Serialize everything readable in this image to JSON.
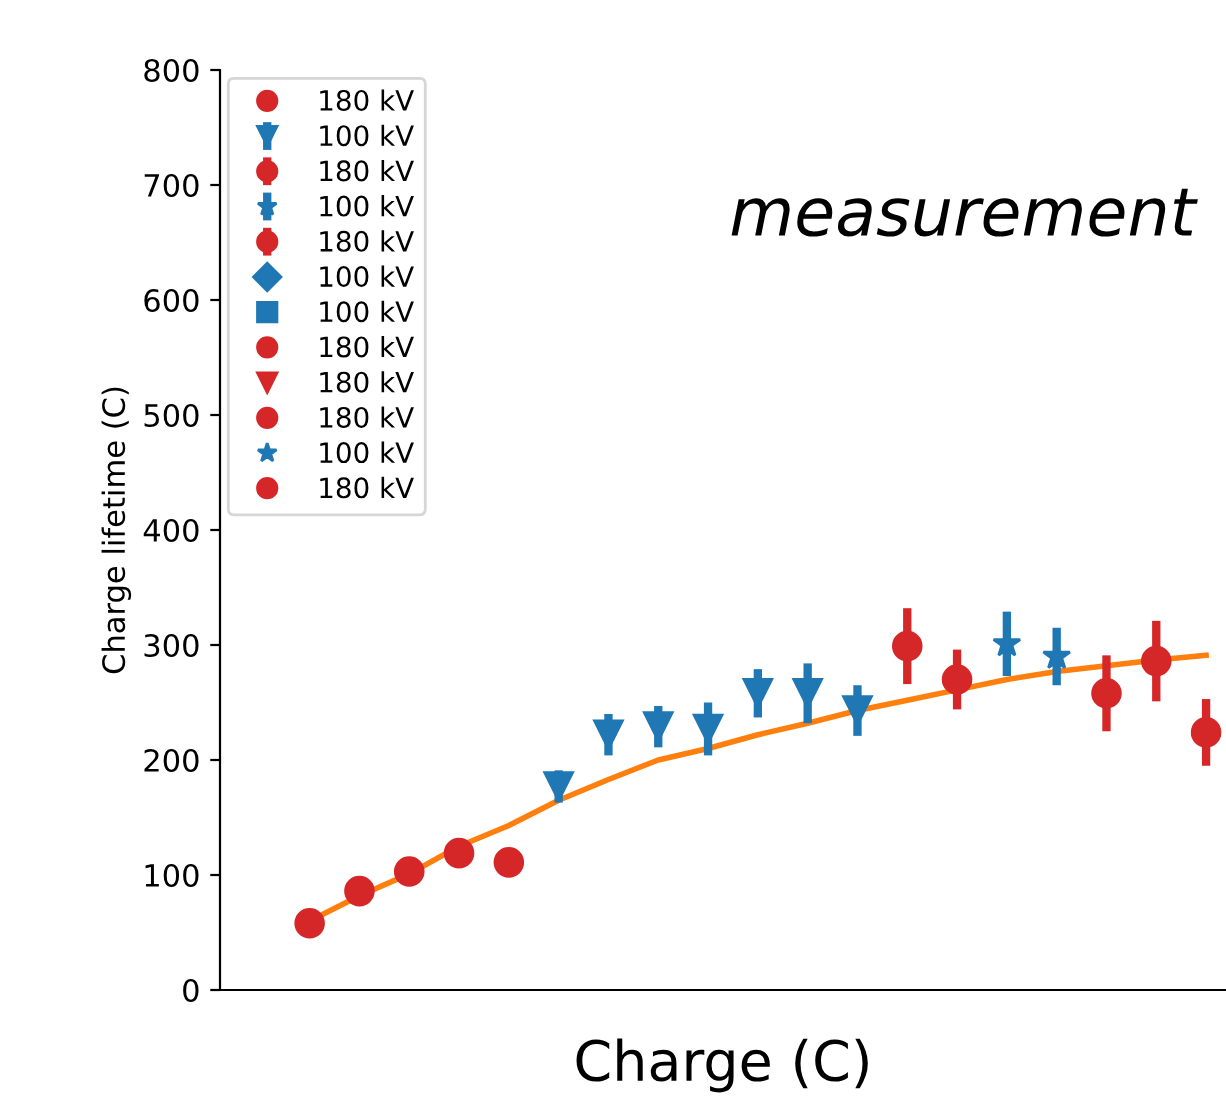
{
  "chart_data": {
    "type": "scatter",
    "xlabel": "Charge (C)",
    "ylabel": "Charge lifetime (C)",
    "ylim": [
      0,
      800
    ],
    "yticks": [
      0,
      100,
      200,
      300,
      400,
      500,
      600,
      700,
      800
    ],
    "grid": false,
    "legend": "top left",
    "annotations": [
      "measurement"
    ],
    "categories": [
      null,
      null,
      null,
      null,
      null,
      null,
      null,
      null,
      null,
      null,
      null,
      null,
      null,
      null,
      null,
      null,
      null,
      null,
      null
    ],
    "series": [
      {
        "name": "180 kV",
        "color": "#d62728",
        "marker": "circle",
        "values": [
          58,
          86,
          103,
          119,
          111,
          null,
          null,
          null,
          null,
          null,
          null,
          null,
          null,
          null,
          null,
          null,
          null,
          null,
          null
        ]
      },
      {
        "name": "100 kV",
        "color": "#1f77b4",
        "marker": "triangle_down",
        "values": [
          null,
          null,
          null,
          null,
          null,
          177,
          222,
          229,
          227,
          258,
          258,
          243,
          null,
          null,
          null,
          null,
          null,
          null,
          null
        ],
        "errors": [
          null,
          null,
          null,
          null,
          null,
          14,
          18,
          18,
          23,
          21,
          26,
          22,
          null,
          null,
          null,
          null,
          null,
          null,
          null
        ]
      },
      {
        "name": "180 kV",
        "color": "#d62728",
        "marker": "circle",
        "values": [
          null,
          null,
          null,
          null,
          null,
          null,
          null,
          null,
          null,
          null,
          null,
          null,
          299,
          null,
          null,
          null,
          null,
          null,
          null
        ],
        "errors": [
          null,
          null,
          null,
          null,
          null,
          null,
          null,
          null,
          null,
          null,
          null,
          null,
          33,
          null,
          null,
          null,
          null,
          null,
          null
        ]
      },
      {
        "name": "100 kV",
        "color": "#1f77b4",
        "marker": "star",
        "values": [
          null,
          null,
          null,
          null,
          null,
          null,
          null,
          null,
          null,
          null,
          null,
          null,
          null,
          null,
          301,
          290,
          null,
          null,
          null
        ],
        "errors": [
          null,
          null,
          null,
          null,
          null,
          null,
          null,
          null,
          null,
          null,
          null,
          null,
          null,
          null,
          28,
          25,
          null,
          null,
          null
        ]
      },
      {
        "name": "180 kV",
        "color": "#d62728",
        "marker": "circle",
        "values": [
          null,
          null,
          null,
          null,
          null,
          null,
          null,
          null,
          null,
          null,
          null,
          null,
          null,
          270,
          null,
          null,
          258,
          286,
          224
        ],
        "errors": [
          null,
          null,
          null,
          null,
          null,
          null,
          null,
          null,
          null,
          null,
          null,
          null,
          null,
          26,
          null,
          null,
          33,
          35,
          29
        ]
      },
      {
        "name": "100 kV",
        "color": "#1f77b4",
        "marker": "diamond",
        "values": [
          null,
          null,
          null,
          null,
          null,
          null,
          null,
          null,
          null,
          null,
          null,
          null,
          null,
          null,
          null,
          null,
          null,
          null,
          null
        ]
      },
      {
        "name": "100 kV",
        "color": "#1f77b4",
        "marker": "square",
        "values": [
          null,
          null,
          null,
          null,
          null,
          null,
          null,
          null,
          null,
          null,
          null,
          null,
          null,
          null,
          null,
          null,
          null,
          null,
          null
        ]
      },
      {
        "name": "180 kV",
        "color": "#d62728",
        "marker": "circle",
        "values": [
          null,
          null,
          null,
          null,
          null,
          null,
          null,
          null,
          null,
          null,
          null,
          null,
          null,
          null,
          null,
          null,
          null,
          null,
          null
        ]
      },
      {
        "name": "180 kV",
        "color": "#d62728",
        "marker": "triangle_down",
        "values": [
          null,
          null,
          null,
          null,
          null,
          null,
          null,
          null,
          null,
          null,
          null,
          null,
          null,
          null,
          null,
          null,
          null,
          null,
          null
        ]
      },
      {
        "name": "180 kV",
        "color": "#d62728",
        "marker": "circle",
        "values": [
          null,
          null,
          null,
          null,
          null,
          null,
          null,
          null,
          null,
          null,
          null,
          null,
          null,
          null,
          null,
          null,
          null,
          null,
          null
        ]
      },
      {
        "name": "100 kV",
        "color": "#1f77b4",
        "marker": "star",
        "values": [
          null,
          null,
          null,
          null,
          null,
          null,
          null,
          null,
          null,
          null,
          null,
          null,
          null,
          null,
          null,
          null,
          null,
          null,
          null
        ]
      },
      {
        "name": "180 kV",
        "color": "#d62728",
        "marker": "circle",
        "values": [
          null,
          null,
          null,
          null,
          null,
          null,
          null,
          null,
          null,
          null,
          null,
          null,
          null,
          null,
          null,
          null,
          null,
          null,
          null
        ]
      },
      {
        "type": "line",
        "color": "#ff7f0e",
        "marker": "none",
        "values": [
          60,
          82,
          101,
          125,
          143,
          165,
          183,
          200,
          210,
          222,
          232,
          243,
          252,
          261,
          270,
          277,
          282,
          287,
          291
        ]
      }
    ]
  }
}
